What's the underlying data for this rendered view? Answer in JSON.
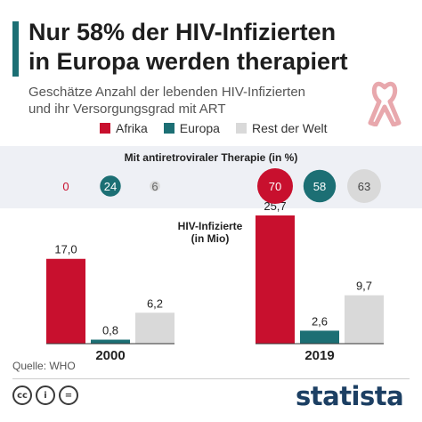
{
  "header": {
    "title_line1": "Nur 58% der HIV-Infizierten",
    "title_line2": "in Europa werden therapiert",
    "subtitle_line1": "Geschätze Anzahl der lebenden HIV-Infizierten",
    "subtitle_line2": "und ihr Versorgungsgrad mit ART"
  },
  "legend": [
    {
      "name": "Afrika",
      "color": "#c8102e"
    },
    {
      "name": "Europa",
      "color": "#1c6f74"
    },
    {
      "name": "Rest der Welt",
      "color": "#d9d9d9"
    }
  ],
  "source": "Quelle: WHO",
  "brand": "statista",
  "icons": [
    "ribbon-icon",
    "cc-icon",
    "by-icon",
    "nd-icon"
  ],
  "cc_labels": [
    "cc",
    "i",
    "="
  ],
  "chart_data": {
    "type": "bar",
    "categories": [
      "2000",
      "2019"
    ],
    "series": [
      {
        "name": "Afrika",
        "values": [
          17.0,
          25.7
        ],
        "labels": [
          "17,0",
          "25,7"
        ],
        "color": "#c8102e"
      },
      {
        "name": "Europa",
        "values": [
          0.8,
          2.6
        ],
        "labels": [
          "0,8",
          "2,6"
        ],
        "color": "#1c6f74"
      },
      {
        "name": "Rest der Welt",
        "values": [
          6.2,
          9.7
        ],
        "labels": [
          "6,2",
          "9,7"
        ],
        "color": "#d9d9d9"
      }
    ],
    "ylabel_line1": "HIV-Infizierte",
    "ylabel_line2": "(in Mio)",
    "therapy": {
      "title": "Mit antiretroviraler Therapie (in %)",
      "values": [
        [
          0,
          24,
          6
        ],
        [
          70,
          58,
          63
        ]
      ]
    }
  }
}
